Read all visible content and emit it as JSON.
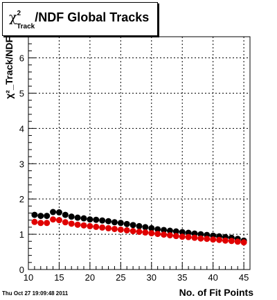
{
  "title": {
    "chi": "χ",
    "sup": "2",
    "sub": "Track",
    "rest": "/NDF  Global Tracks"
  },
  "timestamp": "Thu Oct 27 19:09:48 2011",
  "colors": {
    "series1": "#000000",
    "series2": "#e00000",
    "grid": "#000000"
  },
  "chart_data": {
    "type": "scatter",
    "title": "χ²_Track/NDF  Global Tracks",
    "xlabel": "No. of Fit Points",
    "ylabel": "χ²_Track/NDF",
    "xlim": [
      10,
      46
    ],
    "ylim": [
      0,
      6.6
    ],
    "xticks": [
      10,
      15,
      20,
      25,
      30,
      35,
      40,
      45
    ],
    "yticks": [
      0,
      1,
      2,
      3,
      4,
      5,
      6
    ],
    "grid": true,
    "series": [
      {
        "color": "#000000",
        "x": [
          11,
          12,
          13,
          14,
          15,
          16,
          17,
          18,
          19,
          20,
          21,
          22,
          23,
          24,
          25,
          26,
          27,
          28,
          29,
          30,
          31,
          32,
          33,
          34,
          35,
          36,
          37,
          38,
          39,
          40,
          41,
          42,
          43,
          44,
          45
        ],
        "y": [
          1.55,
          1.52,
          1.52,
          1.63,
          1.62,
          1.55,
          1.5,
          1.47,
          1.45,
          1.42,
          1.41,
          1.39,
          1.37,
          1.34,
          1.32,
          1.29,
          1.26,
          1.23,
          1.2,
          1.17,
          1.14,
          1.12,
          1.1,
          1.08,
          1.06,
          1.04,
          1.02,
          1.0,
          0.98,
          0.96,
          0.94,
          0.92,
          0.9,
          0.87,
          0.82
        ]
      },
      {
        "color": "#e00000",
        "x": [
          11,
          12,
          13,
          14,
          15,
          16,
          17,
          18,
          19,
          20,
          21,
          22,
          23,
          24,
          25,
          26,
          27,
          28,
          29,
          30,
          31,
          32,
          33,
          34,
          35,
          36,
          37,
          38,
          39,
          40,
          41,
          42,
          43,
          44,
          45
        ],
        "y": [
          1.35,
          1.32,
          1.32,
          1.42,
          1.4,
          1.34,
          1.3,
          1.27,
          1.25,
          1.23,
          1.21,
          1.19,
          1.17,
          1.15,
          1.13,
          1.11,
          1.09,
          1.07,
          1.05,
          1.03,
          1.01,
          0.99,
          0.97,
          0.95,
          0.93,
          0.92,
          0.9,
          0.88,
          0.87,
          0.85,
          0.84,
          0.82,
          0.81,
          0.79,
          0.77
        ]
      }
    ]
  }
}
